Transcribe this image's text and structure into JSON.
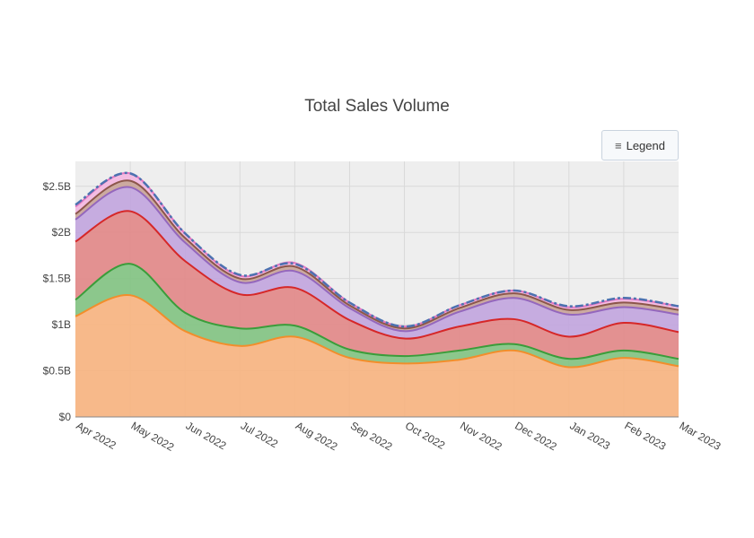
{
  "title": "Total Sales Volume",
  "legend_button": {
    "icon": "menu-icon",
    "icon_glyph": "≡",
    "label": "Legend"
  },
  "chart_data": {
    "type": "area",
    "stacked": true,
    "title": "Total Sales Volume",
    "x": [
      "Apr 2022",
      "May 2022",
      "Jun 2022",
      "Jul 2022",
      "Aug 2022",
      "Sep 2022",
      "Oct 2022",
      "Nov 2022",
      "Dec 2022",
      "Jan 2023",
      "Feb 2023",
      "Mar 2023"
    ],
    "x_tick_labels": [
      "Apr 2022",
      "May 2022",
      "Jun 2022",
      "Jul 2022",
      "Aug 2022",
      "Sep 2022",
      "Oct 2022",
      "Nov 2022",
      "Dec 2022",
      "Jan 2023",
      "Feb 2023",
      "Mar 2023"
    ],
    "y_tick_labels": [
      "$0",
      "$0.5B",
      "$1B",
      "$1.5B",
      "$2B",
      "$2.5B"
    ],
    "y_ticks": [
      0,
      0.5,
      1,
      1.5,
      2,
      2.5
    ],
    "ylim": [
      0,
      2.77
    ],
    "y_unit": "billions USD",
    "grid": true,
    "plot_background": "#eeeeee",
    "series": [
      {
        "color": "#f28e2b",
        "fill": "#f7b584",
        "values": [
          1.09,
          1.32,
          0.93,
          0.77,
          0.87,
          0.64,
          0.58,
          0.62,
          0.72,
          0.54,
          0.64,
          0.55
        ]
      },
      {
        "color": "#3a9d3a",
        "fill": "#86c486",
        "values": [
          0.18,
          0.34,
          0.2,
          0.19,
          0.12,
          0.09,
          0.08,
          0.1,
          0.07,
          0.09,
          0.08,
          0.08
        ]
      },
      {
        "color": "#d62728",
        "fill": "#e18b8b",
        "values": [
          0.63,
          0.57,
          0.56,
          0.37,
          0.41,
          0.32,
          0.19,
          0.26,
          0.27,
          0.24,
          0.3,
          0.29
        ]
      },
      {
        "color": "#9467bd",
        "fill": "#c3a8de",
        "values": [
          0.24,
          0.26,
          0.2,
          0.13,
          0.18,
          0.13,
          0.08,
          0.16,
          0.23,
          0.24,
          0.17,
          0.19
        ]
      },
      {
        "color": "#8c564b",
        "fill": "#c9a59b",
        "values": [
          0.06,
          0.07,
          0.05,
          0.04,
          0.05,
          0.03,
          0.03,
          0.04,
          0.05,
          0.05,
          0.05,
          0.05
        ]
      },
      {
        "color": "#e377c2",
        "fill": "#f2b8e0",
        "values": [
          0.08,
          0.08,
          0.05,
          0.03,
          0.04,
          0.03,
          0.02,
          0.03,
          0.03,
          0.03,
          0.04,
          0.04
        ]
      }
    ],
    "total_line": {
      "color": "#4c72b0",
      "style": "dashdot",
      "values": [
        2.3,
        2.64,
        1.99,
        1.54,
        1.66,
        1.24,
        0.98,
        1.21,
        1.37,
        1.2,
        1.29,
        1.2
      ]
    }
  }
}
